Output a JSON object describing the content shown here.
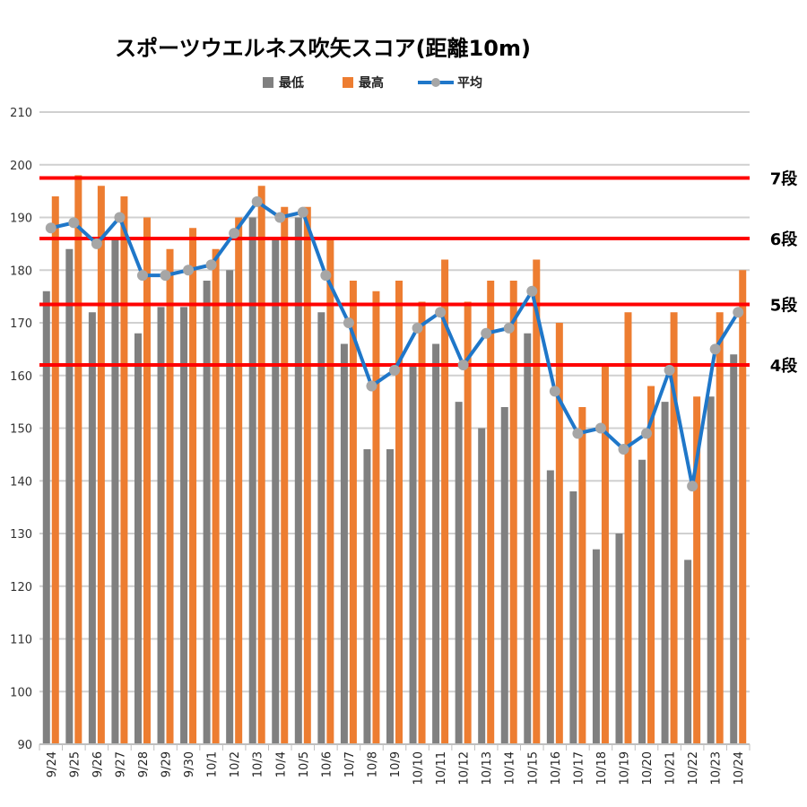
{
  "chart_data": {
    "type": "bar",
    "title": "スポーツウエルネス吹矢スコア(距離10m)",
    "categories": [
      "9/24",
      "9/25",
      "9/26",
      "9/27",
      "9/28",
      "9/29",
      "9/30",
      "10/1",
      "10/2",
      "10/3",
      "10/4",
      "10/5",
      "10/6",
      "10/7",
      "10/8",
      "10/9",
      "10/10",
      "10/11",
      "10/12",
      "10/13",
      "10/14",
      "10/15",
      "10/16",
      "10/17",
      "10/18",
      "10/19",
      "10/20",
      "10/21",
      "10/22",
      "10/23",
      "10/24"
    ],
    "ylim": [
      90,
      210
    ],
    "yticks": [
      90,
      100,
      110,
      120,
      130,
      140,
      150,
      160,
      170,
      180,
      190,
      200,
      210
    ],
    "grid": true,
    "legend_position": "top",
    "series": [
      {
        "name": "最低",
        "kind": "bar",
        "color": "#808080",
        "values": [
          176,
          184,
          172,
          186,
          168,
          173,
          173,
          178,
          180,
          190,
          186,
          190,
          172,
          166,
          146,
          146,
          162,
          166,
          155,
          150,
          154,
          168,
          142,
          138,
          127,
          130,
          144,
          155,
          125,
          156,
          164
        ]
      },
      {
        "name": "最高",
        "kind": "bar",
        "color": "#ED7D31",
        "values": [
          194,
          198,
          196,
          194,
          190,
          184,
          188,
          184,
          190,
          196,
          192,
          192,
          186,
          178,
          176,
          178,
          174,
          182,
          174,
          178,
          178,
          182,
          170,
          154,
          162,
          172,
          158,
          172,
          156,
          172,
          180
        ]
      },
      {
        "name": "平均",
        "kind": "line",
        "color": "#1F77C9",
        "marker_color": "#A6A6A6",
        "values": [
          188,
          189,
          185,
          190,
          179,
          179,
          180,
          181,
          187,
          193,
          190,
          191,
          179,
          170,
          158,
          161,
          169,
          172,
          162,
          168,
          169,
          176,
          157,
          149,
          150,
          146,
          149,
          161,
          139,
          165,
          172
        ]
      }
    ],
    "reference_lines": [
      {
        "label": "7段",
        "value": 197.5,
        "color": "#FF0000"
      },
      {
        "label": "6段",
        "value": 186,
        "color": "#FF0000"
      },
      {
        "label": "5段",
        "value": 173.5,
        "color": "#FF0000"
      },
      {
        "label": "4段",
        "value": 162,
        "color": "#FF0000"
      }
    ]
  }
}
